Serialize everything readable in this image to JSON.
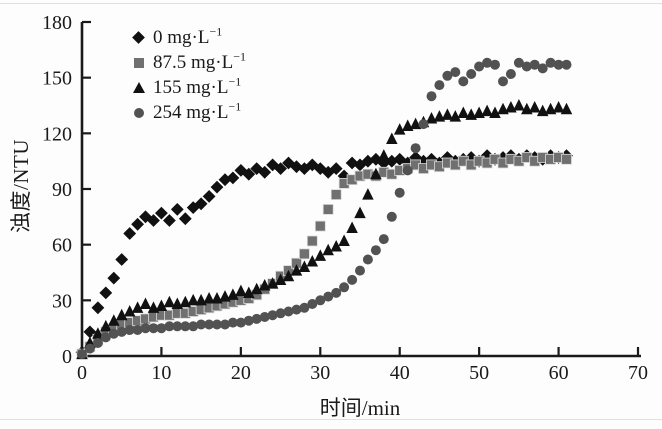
{
  "chart_data": {
    "type": "scatter",
    "title": "",
    "xlabel": "时间/min",
    "ylabel": "浊度/NTU",
    "xlim": [
      0,
      70
    ],
    "ylim": [
      0,
      180
    ],
    "xticks": [
      0,
      10,
      20,
      30,
      40,
      50,
      60,
      70
    ],
    "yticks": [
      0,
      30,
      60,
      90,
      120,
      150,
      180
    ],
    "grid": false,
    "legend_position": "upper-left-inside",
    "axis_color": "#1a1a1a",
    "series": [
      {
        "name": "0 mg·L⁻¹",
        "label_base": "0 mg·L",
        "label_sup": "−1",
        "marker": "diamond",
        "color": "#111111",
        "size": 12.8,
        "points": [
          [
            0,
            2
          ],
          [
            1,
            13
          ],
          [
            2,
            26
          ],
          [
            3,
            34
          ],
          [
            4,
            42
          ],
          [
            5,
            52
          ],
          [
            6,
            66
          ],
          [
            7,
            71
          ],
          [
            8,
            75
          ],
          [
            9,
            73
          ],
          [
            10,
            77
          ],
          [
            11,
            73
          ],
          [
            12,
            79
          ],
          [
            13,
            74
          ],
          [
            14,
            80
          ],
          [
            15,
            82
          ],
          [
            16,
            86
          ],
          [
            17,
            91
          ],
          [
            18,
            95
          ],
          [
            19,
            96
          ],
          [
            20,
            100
          ],
          [
            21,
            98
          ],
          [
            22,
            101
          ],
          [
            23,
            99
          ],
          [
            24,
            103
          ],
          [
            25,
            101
          ],
          [
            26,
            104
          ],
          [
            27,
            102
          ],
          [
            28,
            101
          ],
          [
            29,
            103
          ],
          [
            30,
            101
          ],
          [
            31,
            99
          ],
          [
            32,
            101
          ],
          [
            33,
            97
          ],
          [
            34,
            104
          ],
          [
            35,
            103
          ],
          [
            36,
            105
          ],
          [
            37,
            106
          ],
          [
            38,
            104
          ],
          [
            39,
            105
          ],
          [
            40,
            106
          ],
          [
            41,
            104
          ],
          [
            42,
            107
          ],
          [
            43,
            105
          ],
          [
            44,
            106
          ],
          [
            45,
            104
          ],
          [
            46,
            107
          ],
          [
            47,
            105
          ],
          [
            48,
            106
          ],
          [
            49,
            107
          ],
          [
            50,
            105
          ],
          [
            51,
            108
          ],
          [
            52,
            106
          ],
          [
            53,
            107
          ],
          [
            54,
            108
          ],
          [
            55,
            106
          ],
          [
            56,
            108
          ],
          [
            57,
            107
          ],
          [
            58,
            106
          ],
          [
            59,
            108
          ],
          [
            60,
            107
          ],
          [
            61,
            108
          ]
        ]
      },
      {
        "name": "87.5 mg·L⁻¹",
        "label_base": "87.5 mg·L",
        "label_sup": "−1",
        "marker": "square",
        "color": "#707070",
        "size": 10,
        "points": [
          [
            0,
            1
          ],
          [
            1,
            5
          ],
          [
            2,
            9
          ],
          [
            3,
            13
          ],
          [
            4,
            15
          ],
          [
            5,
            17
          ],
          [
            6,
            18
          ],
          [
            7,
            19
          ],
          [
            8,
            20
          ],
          [
            9,
            21
          ],
          [
            10,
            22
          ],
          [
            11,
            22
          ],
          [
            12,
            23
          ],
          [
            13,
            23
          ],
          [
            14,
            24
          ],
          [
            15,
            25
          ],
          [
            16,
            26
          ],
          [
            17,
            27
          ],
          [
            18,
            28
          ],
          [
            19,
            29
          ],
          [
            20,
            30
          ],
          [
            21,
            31
          ],
          [
            22,
            33
          ],
          [
            23,
            36
          ],
          [
            24,
            39
          ],
          [
            25,
            43
          ],
          [
            26,
            46
          ],
          [
            27,
            50
          ],
          [
            28,
            55
          ],
          [
            29,
            62
          ],
          [
            30,
            70
          ],
          [
            31,
            79
          ],
          [
            32,
            87
          ],
          [
            33,
            93
          ],
          [
            34,
            95
          ],
          [
            35,
            97
          ],
          [
            36,
            98
          ],
          [
            37,
            97
          ],
          [
            38,
            99
          ],
          [
            39,
            98
          ],
          [
            40,
            100
          ],
          [
            41,
            101
          ],
          [
            42,
            103
          ],
          [
            43,
            101
          ],
          [
            44,
            103
          ],
          [
            45,
            102
          ],
          [
            46,
            104
          ],
          [
            47,
            103
          ],
          [
            48,
            105
          ],
          [
            49,
            103
          ],
          [
            50,
            105
          ],
          [
            51,
            104
          ],
          [
            52,
            106
          ],
          [
            53,
            104
          ],
          [
            54,
            106
          ],
          [
            55,
            105
          ],
          [
            56,
            107
          ],
          [
            57,
            105
          ],
          [
            58,
            107
          ],
          [
            59,
            106
          ],
          [
            60,
            107
          ],
          [
            61,
            106
          ]
        ]
      },
      {
        "name": "155 mg·L⁻¹",
        "label_base": "155 mg·L",
        "label_sup": "−1",
        "marker": "triangle",
        "color": "#111111",
        "size": 11.5,
        "points": [
          [
            0,
            1
          ],
          [
            1,
            7
          ],
          [
            2,
            12
          ],
          [
            3,
            16
          ],
          [
            4,
            19
          ],
          [
            5,
            22
          ],
          [
            6,
            24
          ],
          [
            7,
            26
          ],
          [
            8,
            28
          ],
          [
            9,
            26
          ],
          [
            10,
            27
          ],
          [
            11,
            29
          ],
          [
            12,
            28
          ],
          [
            13,
            29
          ],
          [
            14,
            30
          ],
          [
            15,
            30
          ],
          [
            16,
            31
          ],
          [
            17,
            31
          ],
          [
            18,
            32
          ],
          [
            19,
            33
          ],
          [
            20,
            35
          ],
          [
            21,
            34
          ],
          [
            22,
            36
          ],
          [
            23,
            38
          ],
          [
            24,
            39
          ],
          [
            25,
            41
          ],
          [
            26,
            43
          ],
          [
            27,
            46
          ],
          [
            28,
            48
          ],
          [
            29,
            51
          ],
          [
            30,
            54
          ],
          [
            31,
            57
          ],
          [
            32,
            59
          ],
          [
            33,
            62
          ],
          [
            34,
            69
          ],
          [
            35,
            77
          ],
          [
            36,
            87
          ],
          [
            37,
            98
          ],
          [
            38,
            108
          ],
          [
            39,
            117
          ],
          [
            40,
            122
          ],
          [
            41,
            124
          ],
          [
            42,
            125
          ],
          [
            43,
            126
          ],
          [
            44,
            128
          ],
          [
            45,
            129
          ],
          [
            46,
            130
          ],
          [
            47,
            129
          ],
          [
            48,
            131
          ],
          [
            49,
            130
          ],
          [
            50,
            131
          ],
          [
            51,
            132
          ],
          [
            52,
            131
          ],
          [
            53,
            133
          ],
          [
            54,
            134
          ],
          [
            55,
            135
          ],
          [
            56,
            133
          ],
          [
            57,
            134
          ],
          [
            58,
            132
          ],
          [
            59,
            133
          ],
          [
            60,
            134
          ],
          [
            61,
            133
          ]
        ]
      },
      {
        "name": "254 mg·L⁻¹",
        "label_base": "254 mg·L",
        "label_sup": "−1",
        "marker": "circle",
        "color": "#525252",
        "size": 10,
        "points": [
          [
            0,
            1
          ],
          [
            1,
            4
          ],
          [
            2,
            7
          ],
          [
            3,
            10
          ],
          [
            4,
            12
          ],
          [
            5,
            13
          ],
          [
            6,
            14
          ],
          [
            7,
            14
          ],
          [
            8,
            15
          ],
          [
            9,
            15
          ],
          [
            10,
            15
          ],
          [
            11,
            16
          ],
          [
            12,
            16
          ],
          [
            13,
            16
          ],
          [
            14,
            16
          ],
          [
            15,
            17
          ],
          [
            16,
            17
          ],
          [
            17,
            17
          ],
          [
            18,
            17
          ],
          [
            19,
            18
          ],
          [
            20,
            18
          ],
          [
            21,
            19
          ],
          [
            22,
            20
          ],
          [
            23,
            21
          ],
          [
            24,
            22
          ],
          [
            25,
            23
          ],
          [
            26,
            24
          ],
          [
            27,
            25
          ],
          [
            28,
            26
          ],
          [
            29,
            28
          ],
          [
            30,
            30
          ],
          [
            31,
            32
          ],
          [
            32,
            34
          ],
          [
            33,
            37
          ],
          [
            34,
            41
          ],
          [
            35,
            46
          ],
          [
            36,
            52
          ],
          [
            37,
            57
          ],
          [
            38,
            63
          ],
          [
            39,
            75
          ],
          [
            40,
            88
          ],
          [
            41,
            100
          ],
          [
            42,
            112
          ],
          [
            43,
            125
          ],
          [
            44,
            140
          ],
          [
            45,
            146
          ],
          [
            46,
            151
          ],
          [
            47,
            153
          ],
          [
            48,
            148
          ],
          [
            49,
            152
          ],
          [
            50,
            156
          ],
          [
            51,
            158
          ],
          [
            52,
            157
          ],
          [
            53,
            148
          ],
          [
            54,
            152
          ],
          [
            55,
            158
          ],
          [
            56,
            156
          ],
          [
            57,
            157
          ],
          [
            58,
            155
          ],
          [
            59,
            158
          ],
          [
            60,
            157
          ],
          [
            61,
            157
          ]
        ]
      }
    ]
  }
}
